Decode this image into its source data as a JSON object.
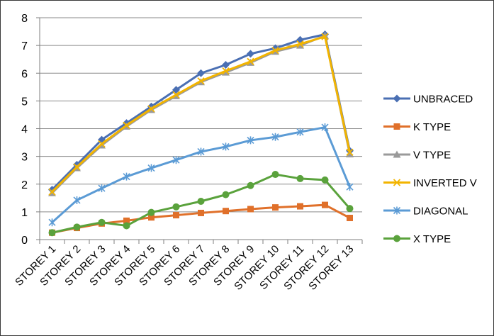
{
  "chart_data": {
    "type": "line",
    "title": "",
    "xlabel": "",
    "ylabel": "",
    "ylim": [
      0,
      8
    ],
    "yticks": [
      0,
      1,
      2,
      3,
      4,
      5,
      6,
      7,
      8
    ],
    "grid": "horizontal",
    "legend_position": "right",
    "categories": [
      "STOREY 1",
      "STOREY 2",
      "STOREY 3",
      "STOREY 4",
      "STOREY 5",
      "STOREY 6",
      "STOREY 7",
      "STOREY 8",
      "STOREY 9",
      "STOREY 10",
      "STOREY 11",
      "STOREY 12",
      "STOREY 13"
    ],
    "series": [
      {
        "name": "UNBRACED",
        "color": "#4a6fb3",
        "marker": "diamond",
        "values": [
          1.8,
          2.7,
          3.6,
          4.2,
          4.8,
          5.4,
          6.0,
          6.3,
          6.7,
          6.9,
          7.2,
          7.4,
          3.2
        ]
      },
      {
        "name": "K TYPE",
        "color": "#e0702a",
        "marker": "square",
        "values": [
          0.25,
          0.42,
          0.58,
          0.68,
          0.8,
          0.88,
          0.96,
          1.03,
          1.1,
          1.16,
          1.2,
          1.25,
          0.78
        ]
      },
      {
        "name": "V TYPE",
        "color": "#9a9a9a",
        "marker": "triangle",
        "values": [
          1.68,
          2.58,
          3.4,
          4.08,
          4.68,
          5.18,
          5.68,
          6.03,
          6.38,
          6.78,
          7.0,
          7.35,
          3.08
        ]
      },
      {
        "name": "INVERTED V",
        "color": "#f2b400",
        "marker": "x",
        "values": [
          1.72,
          2.62,
          3.45,
          4.12,
          4.72,
          5.22,
          5.72,
          6.08,
          6.42,
          6.82,
          7.05,
          7.32,
          3.15
        ]
      },
      {
        "name": "DIAGONAL",
        "color": "#5b9bd5",
        "marker": "star",
        "values": [
          0.62,
          1.42,
          1.85,
          2.27,
          2.58,
          2.87,
          3.17,
          3.35,
          3.58,
          3.7,
          3.88,
          4.05,
          1.9
        ]
      },
      {
        "name": "X TYPE",
        "color": "#5aa23c",
        "marker": "circle",
        "values": [
          0.25,
          0.45,
          0.62,
          0.5,
          0.98,
          1.18,
          1.38,
          1.62,
          1.95,
          2.35,
          2.2,
          2.15,
          1.12
        ]
      }
    ]
  }
}
